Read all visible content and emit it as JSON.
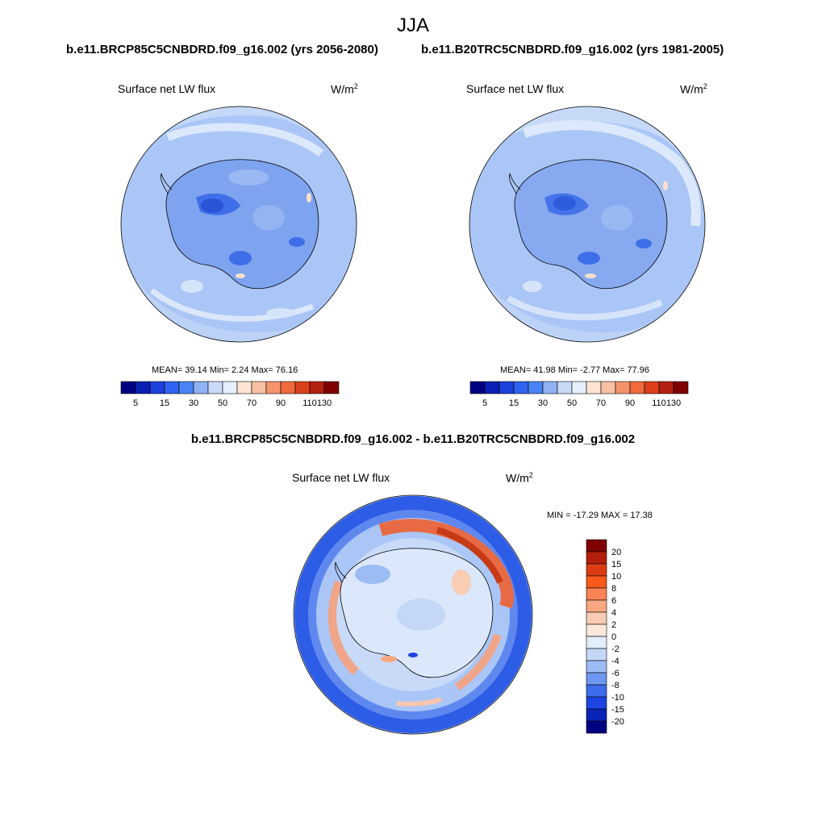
{
  "season": "JJA",
  "case_titles": {
    "left": "b.e11.BRCP85C5CNBDRD.f09_g16.002 (yrs 2056-2080)",
    "right": "b.e11.B20TRC5CNBDRD.f09_g16.002 (yrs 1981-2005)",
    "diff": "b.e11.BRCP85C5CNBDRD.f09_g16.002 - b.e11.B20TRC5CNBDRD.f09_g16.002"
  },
  "panels": {
    "left": {
      "variable": "Surface net LW flux",
      "units_base": "W/m",
      "units_exp": "2",
      "stats_text": "MEAN=  39.14  Min=   2.24  Max=  76.16",
      "mean": 39.14,
      "min": 2.24,
      "max": 76.16
    },
    "right": {
      "variable": "Surface net LW flux",
      "units_base": "W/m",
      "units_exp": "2",
      "stats_text": "MEAN=  41.98  Min=  -2.77  Max=  77.96",
      "mean": 41.98,
      "min": -2.77,
      "max": 77.96
    },
    "diff": {
      "variable": "Surface net LW flux",
      "units_base": "W/m",
      "units_exp": "2",
      "stats_text": "MIN = -17.29 MAX =  17.38",
      "min": -17.29,
      "max": 17.38
    }
  },
  "abs_colorbar": {
    "colors": [
      "#000080",
      "#0a1fb4",
      "#1e40dc",
      "#2f63f0",
      "#4a84f4",
      "#8fb2f4",
      "#c8daf8",
      "#e6f0fc",
      "#fde4d4",
      "#f9c0a4",
      "#f5946c",
      "#f06a3c",
      "#dc3f1c",
      "#b42010",
      "#800000"
    ],
    "labels": [
      "5",
      "15",
      "30",
      "50",
      "70",
      "90",
      "110",
      "130"
    ]
  },
  "diff_colorbar": {
    "colors": [
      "#800000",
      "#b41e0a",
      "#dc3c14",
      "#f85a1c",
      "#f98456",
      "#f7a882",
      "#f9cdb4",
      "#fde8dc",
      "#e3eefb",
      "#c4d7f7",
      "#9cbcf4",
      "#6e98f0",
      "#3d6cec",
      "#1c44e0",
      "#0a24b8",
      "#000080"
    ],
    "labels": [
      "20",
      "15",
      "10",
      "8",
      "6",
      "4",
      "2",
      "0",
      "-2",
      "-4",
      "-6",
      "-8",
      "-10",
      "-15",
      "-20"
    ]
  }
}
